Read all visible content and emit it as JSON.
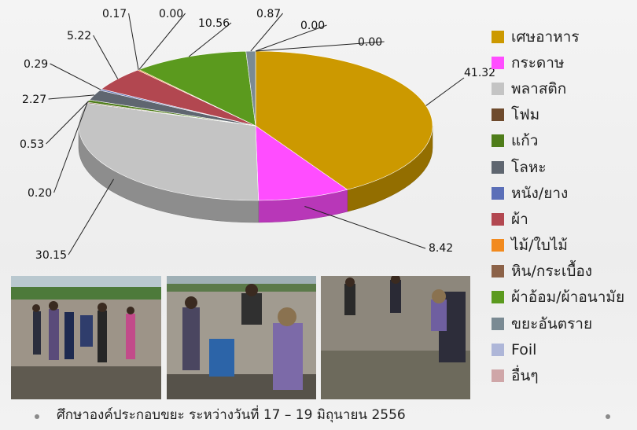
{
  "chart_data": {
    "type": "pie",
    "style": "3d",
    "legend_position": "right",
    "slices": [
      {
        "label": "เศษอาหาร",
        "value": 41.32,
        "color": "#CC9900"
      },
      {
        "label": "กระดาษ",
        "value": 8.42,
        "color": "#FF4DFF"
      },
      {
        "label": "พลาสติก",
        "value": 30.15,
        "color": "#C4C4C4"
      },
      {
        "label": "โฟม",
        "value": 0.2,
        "color": "#6E4A2C"
      },
      {
        "label": "แก้ว",
        "value": 0.53,
        "color": "#4F7D1A"
      },
      {
        "label": "โลหะ",
        "value": 2.27,
        "color": "#5F6670"
      },
      {
        "label": "หนัง/ยาง",
        "value": 0.29,
        "color": "#5B6FB8"
      },
      {
        "label": "ผ้า",
        "value": 5.22,
        "color": "#B24750"
      },
      {
        "label": "ไม้/ใบไม้",
        "value": 0.17,
        "color": "#F28A1E"
      },
      {
        "label": "หิน/กระเบื้อง",
        "value": 0.0,
        "color": "#8C6248"
      },
      {
        "label": "ผ้าอ้อม/ผ้าอนามัย",
        "value": 10.56,
        "color": "#5B9A1E"
      },
      {
        "label": "ขยะอันตราย",
        "value": 0.87,
        "color": "#7A8A93"
      },
      {
        "label": "Foil",
        "value": 0.0,
        "color": "#AEB6D8"
      },
      {
        "label": "อื่นๆ",
        "value": 0.0,
        "color": "#CFA6A8"
      }
    ]
  },
  "footer": {
    "caption": "ศึกษาองค์ประกอบขยะ ระหว่างวันที่ 17 – 19 มิถุนายน 2556"
  }
}
